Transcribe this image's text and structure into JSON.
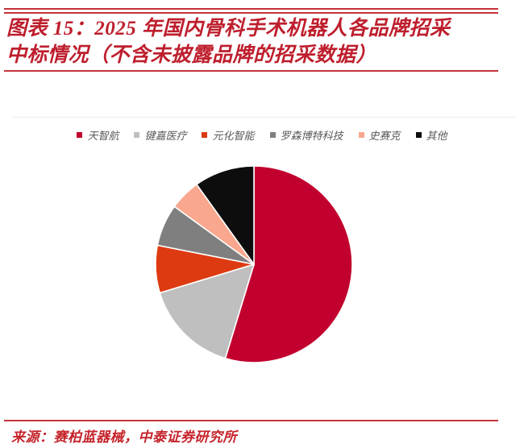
{
  "figure": {
    "label_and_title_line1": "图表 15：2025 年国内骨科手术机器人各品牌招采",
    "title_line2": "中标情况（不含未披露品牌的招采数据）",
    "source": "来源：赛柏蓝器械，中泰证券研究所"
  },
  "colors": {
    "title_red": "#BE1E2D",
    "rule_red": "#C5333A",
    "footer_red": "#C5232B",
    "legend_text_gray": "#595959",
    "page_background": "#FFFFFF"
  },
  "chart_data": {
    "type": "pie",
    "title": "2025 年国内骨科手术机器人各品牌招采中标情况（不含未披露品牌的招采数据）",
    "legend_position": "top",
    "direction": "clockwise",
    "start_angle": "12-oclock",
    "values_note": "percent of total; no numeric labels shown in chart, values estimated from slice angles",
    "series": [
      {
        "name": "天智航",
        "value": 54.7,
        "color": "#C2002F"
      },
      {
        "name": "键嘉医疗",
        "value": 15.6,
        "color": "#BFBFBF"
      },
      {
        "name": "元化智能",
        "value": 7.8,
        "color": "#DE3A11"
      },
      {
        "name": "罗森博特科技",
        "value": 6.9,
        "color": "#7F7F7F"
      },
      {
        "name": "史赛克",
        "value": 5.1,
        "color": "#F9A78E"
      },
      {
        "name": "其他",
        "value": 9.9,
        "color": "#0D0D0D"
      }
    ]
  }
}
